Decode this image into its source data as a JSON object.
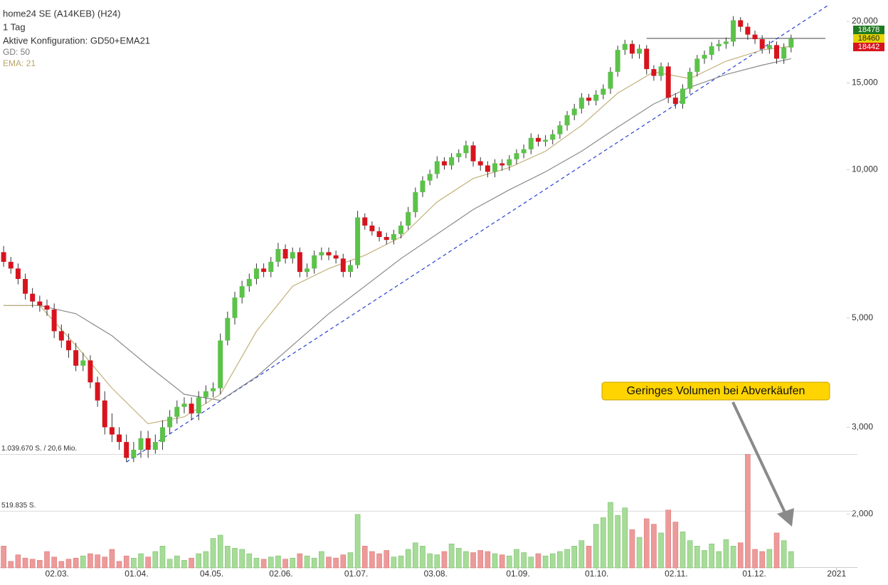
{
  "chart_data": {
    "type": "candlestick",
    "title": "home24 SE (A14KEB) (H24)",
    "subtitle": "1 Tag",
    "config": "Aktive Konfiguration: GD50+EMA21",
    "log_scale": true,
    "up_color": "#5cc24a",
    "down_color": "#d7141e",
    "volume_up_color": "#a6dc98",
    "volume_down_color": "#ec9a9a",
    "x": [
      0,
      1,
      2,
      3,
      4,
      5,
      6,
      7,
      8,
      9,
      10,
      11,
      12,
      13,
      14,
      15,
      16,
      17,
      18,
      19,
      20,
      21,
      22,
      23,
      24,
      25,
      26,
      27,
      28,
      29,
      30,
      31,
      32,
      33,
      34,
      35,
      36,
      37,
      38,
      39,
      40,
      41,
      42,
      43,
      44,
      45,
      46,
      47,
      48,
      49,
      50,
      51,
      52,
      53,
      54,
      55,
      56,
      57,
      58,
      59,
      60,
      61,
      62,
      63,
      64,
      65,
      66,
      67,
      68,
      69,
      70,
      71,
      72,
      73,
      74,
      75,
      76,
      77,
      78,
      79,
      80,
      81,
      82,
      83,
      84,
      85,
      86,
      87,
      88,
      89,
      90,
      91,
      92,
      93,
      94,
      95,
      96,
      97,
      98,
      99,
      100,
      101,
      102,
      103,
      104,
      105,
      106,
      107,
      108,
      109
    ],
    "open": [
      6800,
      6500,
      6300,
      6000,
      5600,
      5400,
      5300,
      5200,
      4700,
      4500,
      4300,
      4000,
      4100,
      3700,
      3400,
      3000,
      2900,
      2800,
      2600,
      2700,
      2850,
      2700,
      2800,
      3000,
      3150,
      3300,
      3350,
      3200,
      3450,
      3550,
      3600,
      4500,
      5000,
      5500,
      5800,
      6000,
      6300,
      6200,
      6500,
      6900,
      6600,
      6800,
      6200,
      6300,
      6700,
      6800,
      6700,
      6600,
      6200,
      6400,
      8000,
      7700,
      7500,
      7300,
      7200,
      7400,
      7700,
      8200,
      9000,
      9500,
      9800,
      10400,
      10200,
      10600,
      10800,
      11200,
      10400,
      10200,
      9900,
      10300,
      10200,
      10500,
      10800,
      11000,
      11600,
      11400,
      11500,
      11800,
      12300,
      12900,
      13300,
      14000,
      13800,
      14200,
      14600,
      15800,
      17500,
      18000,
      17200,
      17600,
      16000,
      15500,
      16200,
      14000,
      13600,
      14600,
      15800,
      16800,
      17100,
      17800,
      18000,
      18200,
      20100,
      19500,
      18800,
      18400,
      17600,
      17900,
      16800,
      17700
    ],
    "high": [
      7000,
      6650,
      6450,
      6150,
      5750,
      5550,
      5450,
      5350,
      4850,
      4650,
      4450,
      4250,
      4200,
      3800,
      3550,
      3200,
      3000,
      2900,
      2800,
      2950,
      2950,
      2900,
      3100,
      3250,
      3400,
      3450,
      3450,
      3550,
      3650,
      3700,
      4650,
      5150,
      5650,
      5950,
      6150,
      6450,
      6450,
      6650,
      7100,
      7050,
      6950,
      6950,
      6450,
      6850,
      6950,
      6950,
      6850,
      6750,
      6550,
      8250,
      8150,
      7850,
      7650,
      7450,
      7550,
      7850,
      8400,
      9200,
      9700,
      10000,
      10650,
      10600,
      10800,
      11000,
      11450,
      11400,
      10600,
      10400,
      10500,
      10500,
      10700,
      11000,
      11250,
      11850,
      11800,
      11750,
      12050,
      12550,
      13150,
      13600,
      14300,
      14250,
      14500,
      14900,
      16150,
      17850,
      18350,
      18300,
      17950,
      17900,
      16300,
      16500,
      16500,
      14300,
      14900,
      16100,
      17100,
      17450,
      18150,
      18350,
      18550,
      20500,
      20400,
      19850,
      19150,
      18750,
      18250,
      18200,
      18050,
      18800
    ],
    "low": [
      6350,
      6150,
      5850,
      5450,
      5250,
      5150,
      5050,
      4550,
      4350,
      4150,
      3900,
      3900,
      3600,
      3300,
      2900,
      2800,
      2700,
      2550,
      2550,
      2600,
      2600,
      2650,
      2700,
      2900,
      3050,
      3200,
      3100,
      3100,
      3350,
      3450,
      3500,
      4400,
      4850,
      5350,
      5650,
      5850,
      6050,
      6050,
      6350,
      6450,
      6450,
      6050,
      6050,
      6150,
      6550,
      6550,
      6450,
      6050,
      6050,
      6300,
      7550,
      7350,
      7150,
      7050,
      7050,
      7250,
      7550,
      8000,
      8800,
      9300,
      9600,
      10000,
      10000,
      10350,
      10550,
      10150,
      9950,
      9650,
      9650,
      9950,
      9950,
      10250,
      10550,
      10750,
      11150,
      11150,
      11250,
      11550,
      12000,
      12600,
      13000,
      13500,
      13500,
      13900,
      14250,
      15450,
      17100,
      16800,
      16800,
      15600,
      15150,
      15150,
      13650,
      13300,
      13300,
      14250,
      15450,
      16400,
      16700,
      17400,
      17600,
      17800,
      19050,
      18350,
      18000,
      17200,
      17200,
      16400,
      16400,
      17300
    ],
    "close": [
      6500,
      6300,
      6000,
      5600,
      5400,
      5300,
      5200,
      4700,
      4500,
      4300,
      4000,
      4100,
      3700,
      3400,
      3000,
      2900,
      2800,
      2600,
      2700,
      2850,
      2700,
      2800,
      3000,
      3150,
      3300,
      3350,
      3200,
      3450,
      3550,
      3600,
      4500,
      5000,
      5500,
      5800,
      6000,
      6300,
      6200,
      6500,
      6900,
      6600,
      6800,
      6200,
      6300,
      6700,
      6800,
      6700,
      6600,
      6200,
      6400,
      8000,
      7700,
      7500,
      7300,
      7200,
      7400,
      7700,
      8200,
      9000,
      9500,
      9800,
      10400,
      10200,
      10600,
      10800,
      11200,
      10400,
      10200,
      9900,
      10300,
      10200,
      10500,
      10800,
      11000,
      11600,
      11400,
      11500,
      11800,
      12300,
      12900,
      13300,
      14000,
      13800,
      14200,
      14600,
      15800,
      17500,
      18000,
      17200,
      17600,
      16000,
      15500,
      16200,
      14000,
      13600,
      14600,
      15800,
      16800,
      17100,
      17800,
      18000,
      18200,
      20100,
      19500,
      18800,
      18400,
      17600,
      17900,
      16800,
      17700,
      18460
    ],
    "volume": [
      200000,
      60000,
      120000,
      90000,
      80000,
      70000,
      150000,
      100000,
      60000,
      80000,
      90000,
      110000,
      130000,
      120000,
      100000,
      170000,
      60000,
      110000,
      90000,
      130000,
      100000,
      150000,
      200000,
      80000,
      110000,
      70000,
      90000,
      130000,
      150000,
      270000,
      300000,
      200000,
      180000,
      170000,
      130000,
      90000,
      80000,
      100000,
      110000,
      80000,
      90000,
      130000,
      110000,
      90000,
      150000,
      100000,
      90000,
      120000,
      140000,
      490000,
      200000,
      150000,
      130000,
      160000,
      100000,
      110000,
      170000,
      230000,
      200000,
      130000,
      120000,
      150000,
      220000,
      180000,
      150000,
      140000,
      160000,
      150000,
      130000,
      120000,
      110000,
      170000,
      140000,
      100000,
      130000,
      110000,
      130000,
      150000,
      170000,
      200000,
      250000,
      200000,
      400000,
      460000,
      600000,
      480000,
      550000,
      350000,
      280000,
      450000,
      400000,
      320000,
      530000,
      420000,
      330000,
      250000,
      200000,
      160000,
      220000,
      150000,
      260000,
      200000,
      230000,
      1040000,
      170000,
      150000,
      170000,
      320000,
      250000,
      150000
    ],
    "lines": [
      {
        "name": "GD: 50",
        "color": "#8a8a8a",
        "x": [
          0,
          5,
          10,
          15,
          20,
          25,
          30,
          35,
          40,
          45,
          50,
          55,
          60,
          65,
          70,
          75,
          80,
          85,
          90,
          95,
          100,
          105,
          109
        ],
        "values": [
          5300,
          5300,
          5100,
          4600,
          4000,
          3500,
          3400,
          3800,
          4400,
          5100,
          5800,
          6600,
          7400,
          8300,
          9100,
          9900,
          10900,
          12200,
          13600,
          14700,
          15600,
          16300,
          16800
        ]
      },
      {
        "name": "EMA: 21",
        "color": "#c2b07a",
        "x": [
          0,
          5,
          10,
          15,
          20,
          25,
          30,
          35,
          40,
          45,
          50,
          55,
          60,
          65,
          70,
          75,
          80,
          85,
          90,
          95,
          100,
          105,
          109
        ],
        "values": [
          5300,
          5300,
          4400,
          3600,
          3050,
          3150,
          3500,
          4700,
          5800,
          6300,
          6700,
          7300,
          8600,
          9600,
          10100,
          10900,
          12300,
          14300,
          15800,
          15300,
          16600,
          17500,
          17800
        ]
      }
    ],
    "trendline": {
      "color": "#2a3fd6",
      "x": [
        17,
        114
      ],
      "values": [
        2550,
        21500
      ]
    },
    "levels": [
      {
        "value": 18478,
        "color": "#1f7a1f"
      },
      {
        "value": 18460,
        "color": "#e5d400"
      },
      {
        "value": 18442,
        "color": "#d7141e"
      }
    ],
    "level_start": 89,
    "xlim": [
      -0.5,
      116.7
    ],
    "xticks": [
      {
        "value": 7.4,
        "label": "02.03."
      },
      {
        "value": 18.4,
        "label": "01.04."
      },
      {
        "value": 28.8,
        "label": "04.05."
      },
      {
        "value": 38.4,
        "label": "02.06."
      },
      {
        "value": 48.8,
        "label": "01.07."
      },
      {
        "value": 59.8,
        "label": "03.08."
      },
      {
        "value": 71.2,
        "label": "01.09."
      },
      {
        "value": 82.1,
        "label": "01.10."
      },
      {
        "value": 93.1,
        "label": "02.11."
      },
      {
        "value": 103.9,
        "label": "01.12."
      },
      {
        "value": 115.3,
        "label": "2021"
      }
    ],
    "ylim": [
      1570,
      22100
    ],
    "yticks": [
      {
        "value": 20000,
        "label": "20,000"
      },
      {
        "value": 15000,
        "label": "15,000"
      },
      {
        "value": 10000,
        "label": "10,000"
      },
      {
        "value": 5000,
        "label": "5,000"
      },
      {
        "value": 3000,
        "label": "3,000"
      },
      {
        "value": 2000,
        "label": "2,000"
      }
    ],
    "vlim": [
      0,
      5200000
    ],
    "vticks": [
      {
        "value": 1039670,
        "label": "1.039.670 S. / 20,6 Mio."
      },
      {
        "value": 519835,
        "label": "519.835 S."
      }
    ],
    "annotation": "Geringes Volumen bei Abverkäufen"
  }
}
